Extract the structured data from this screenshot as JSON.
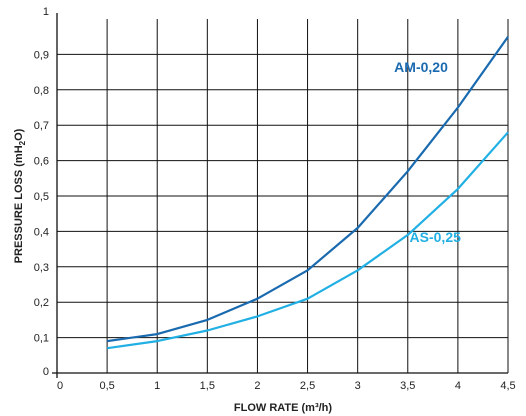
{
  "chart_data": {
    "type": "line",
    "xlabel": "FLOW RATE (m³/h)",
    "ylabel_main": "PRESSURE LOSS (mH",
    "ylabel_sub": "2",
    "ylabel_end": "O)",
    "xlim": [
      0,
      4.5
    ],
    "ylim": [
      0,
      1
    ],
    "grid": true,
    "x_ticks": [
      {
        "v": 0,
        "label": "0"
      },
      {
        "v": 0.5,
        "label": "0,5"
      },
      {
        "v": 1,
        "label": "1"
      },
      {
        "v": 1.5,
        "label": "1,5"
      },
      {
        "v": 2,
        "label": "2"
      },
      {
        "v": 2.5,
        "label": "2,5"
      },
      {
        "v": 3,
        "label": "3"
      },
      {
        "v": 3.5,
        "label": "3,5"
      },
      {
        "v": 4,
        "label": "4"
      },
      {
        "v": 4.5,
        "label": "4,5"
      }
    ],
    "y_ticks": [
      {
        "v": 0,
        "label": "0"
      },
      {
        "v": 0.1,
        "label": "0,1"
      },
      {
        "v": 0.2,
        "label": "0,2"
      },
      {
        "v": 0.3,
        "label": "0,3"
      },
      {
        "v": 0.4,
        "label": "0,4"
      },
      {
        "v": 0.5,
        "label": "0,5"
      },
      {
        "v": 0.6,
        "label": "0,6"
      },
      {
        "v": 0.7,
        "label": "0,7"
      },
      {
        "v": 0.8,
        "label": "0,8"
      },
      {
        "v": 0.9,
        "label": "0,9"
      },
      {
        "v": 1,
        "label": "1"
      }
    ],
    "series": [
      {
        "name": "AM-0,20",
        "color": "#1a6ab0",
        "label_anchor": [
          3.9,
          0.85
        ],
        "x": [
          0.5,
          1,
          1.5,
          2,
          2.5,
          3,
          3.5,
          4,
          4.5
        ],
        "y": [
          0.09,
          0.11,
          0.15,
          0.21,
          0.29,
          0.41,
          0.57,
          0.75,
          0.95
        ]
      },
      {
        "name": "AS-0,25",
        "color": "#22b0e4",
        "label_anchor": [
          4.03,
          0.37
        ],
        "x": [
          0.5,
          1,
          1.5,
          2,
          2.5,
          3,
          3.5,
          4,
          4.5
        ],
        "y": [
          0.07,
          0.09,
          0.12,
          0.16,
          0.21,
          0.29,
          0.39,
          0.52,
          0.68
        ]
      }
    ]
  }
}
